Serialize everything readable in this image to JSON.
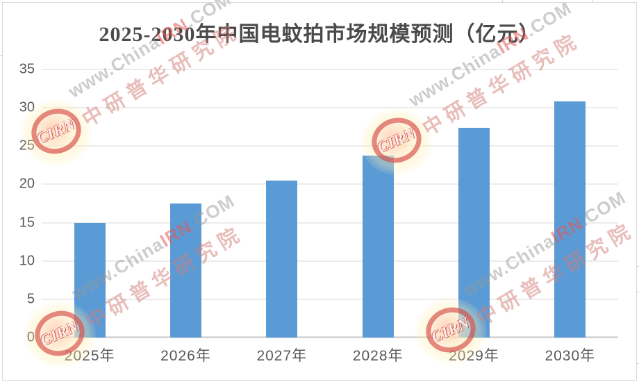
{
  "chart_data": {
    "type": "bar",
    "title": "2025-2030年中国电蚊拍市场规模预测（亿元）",
    "categories": [
      "2025年",
      "2026年",
      "2027年",
      "2028年",
      "2029年",
      "2030年"
    ],
    "values": [
      15,
      17.5,
      20.5,
      23.8,
      27.4,
      30.8
    ],
    "xlabel": "",
    "ylabel": "",
    "ylim": [
      0,
      35
    ],
    "yticks": [
      0,
      5,
      10,
      15,
      20,
      25,
      30,
      35
    ],
    "grid": true,
    "legend_position": "none",
    "bar_color": "#5B9BD5"
  },
  "colors": {
    "bar": "#5B9BD5",
    "gridline": "#D9D9D9",
    "axis_line": "#C6C6C6",
    "text": "#595959",
    "border": "#D9D9D9"
  },
  "watermark": {
    "logo_text": "CIRN",
    "line1_prefix": "www.China",
    "line1_highlight": "IRN",
    "line1_suffix": ".COM",
    "line2": "中研普华研究院"
  }
}
